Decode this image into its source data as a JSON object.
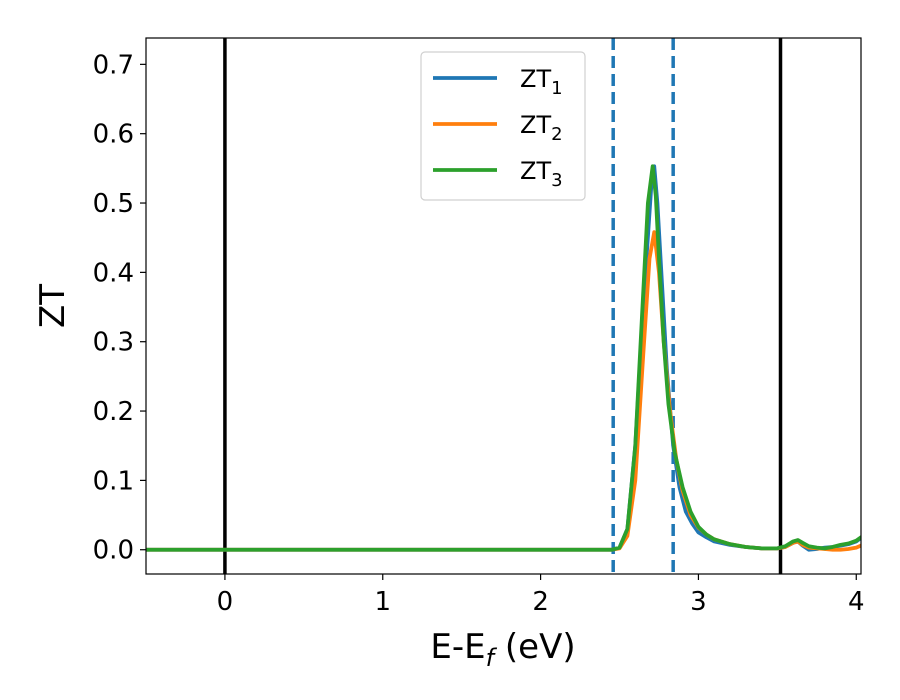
{
  "chart_data": {
    "type": "line",
    "title": "",
    "xlabel": {
      "main": "E-E",
      "sub": "f",
      "suffix": " (eV)"
    },
    "ylabel": "ZT",
    "xlim": [
      -0.5,
      4.03
    ],
    "ylim": [
      -0.035,
      0.738
    ],
    "x_ticks": [
      0,
      1,
      2,
      3,
      4
    ],
    "x_tick_labels": [
      "0",
      "1",
      "2",
      "3",
      "4"
    ],
    "y_ticks": [
      0.0,
      0.1,
      0.2,
      0.3,
      0.4,
      0.5,
      0.6,
      0.7
    ],
    "y_tick_labels": [
      "0.0",
      "0.1",
      "0.2",
      "0.3",
      "0.4",
      "0.5",
      "0.6",
      "0.7"
    ],
    "grid": false,
    "legend_position": "top-center",
    "vertical_lines": [
      {
        "x": 0.0,
        "style": "solid",
        "color": "#000000"
      },
      {
        "x": 3.52,
        "style": "solid",
        "color": "#000000"
      },
      {
        "x": 2.46,
        "style": "dashed",
        "color": "#1f77b4"
      },
      {
        "x": 2.84,
        "style": "dashed",
        "color": "#1f77b4"
      }
    ],
    "series": [
      {
        "name": "ZT",
        "sub": "1",
        "color": "#1f77b4",
        "x": [
          -0.5,
          2.45,
          2.5,
          2.55,
          2.6,
          2.65,
          2.7,
          2.72,
          2.74,
          2.77,
          2.8,
          2.84,
          2.88,
          2.92,
          2.96,
          3.0,
          3.05,
          3.1,
          3.2,
          3.3,
          3.4,
          3.5,
          3.55,
          3.6,
          3.63,
          3.66,
          3.7,
          3.75,
          3.8,
          3.85,
          3.9,
          3.95,
          4.0,
          4.03
        ],
        "y": [
          0.0,
          0.0,
          0.003,
          0.03,
          0.15,
          0.35,
          0.52,
          0.553,
          0.5,
          0.38,
          0.26,
          0.15,
          0.09,
          0.055,
          0.038,
          0.025,
          0.018,
          0.012,
          0.007,
          0.004,
          0.002,
          0.002,
          0.004,
          0.01,
          0.012,
          0.006,
          0.0,
          0.001,
          0.003,
          0.004,
          0.006,
          0.008,
          0.012,
          0.017
        ]
      },
      {
        "name": "ZT",
        "sub": "2",
        "color": "#ff7f0e",
        "x": [
          -0.5,
          2.45,
          2.5,
          2.55,
          2.6,
          2.65,
          2.69,
          2.72,
          2.75,
          2.78,
          2.82,
          2.86,
          2.9,
          2.95,
          3.0,
          3.05,
          3.1,
          3.2,
          3.3,
          3.4,
          3.5,
          3.55,
          3.6,
          3.63,
          3.66,
          3.7,
          3.75,
          3.8,
          3.85,
          3.9,
          3.95,
          4.0,
          4.03
        ],
        "y": [
          0.0,
          0.0,
          0.002,
          0.02,
          0.1,
          0.28,
          0.42,
          0.458,
          0.4,
          0.3,
          0.2,
          0.13,
          0.085,
          0.05,
          0.032,
          0.022,
          0.015,
          0.008,
          0.004,
          0.002,
          0.002,
          0.004,
          0.01,
          0.012,
          0.007,
          0.003,
          0.002,
          0.001,
          0.0,
          0.0,
          0.001,
          0.003,
          0.006
        ]
      },
      {
        "name": "ZT",
        "sub": "3",
        "color": "#2ca02c",
        "x": [
          -0.5,
          2.45,
          2.5,
          2.55,
          2.6,
          2.65,
          2.68,
          2.71,
          2.73,
          2.75,
          2.78,
          2.81,
          2.85,
          2.9,
          2.95,
          3.0,
          3.05,
          3.1,
          3.2,
          3.3,
          3.4,
          3.5,
          3.55,
          3.6,
          3.63,
          3.66,
          3.7,
          3.75,
          3.8,
          3.85,
          3.9,
          3.95,
          4.0,
          4.03
        ],
        "y": [
          0.0,
          0.0,
          0.003,
          0.03,
          0.15,
          0.37,
          0.5,
          0.553,
          0.51,
          0.42,
          0.3,
          0.21,
          0.14,
          0.09,
          0.055,
          0.033,
          0.022,
          0.015,
          0.008,
          0.004,
          0.002,
          0.002,
          0.005,
          0.012,
          0.014,
          0.01,
          0.005,
          0.003,
          0.002,
          0.004,
          0.007,
          0.009,
          0.013,
          0.018
        ]
      }
    ]
  }
}
